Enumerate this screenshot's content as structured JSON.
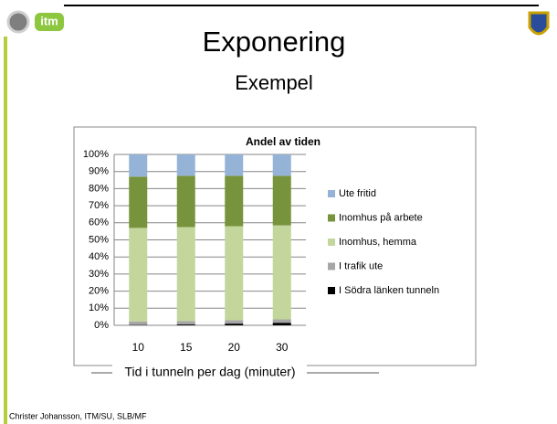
{
  "slide": {
    "title": "Exponering",
    "subtitle": "Exempel",
    "logo_text": "itm",
    "footer": "Christer Johansson, ITM/SU, SLB/MF"
  },
  "chart_data": {
    "type": "stacked_bar",
    "title": "Andel av tiden",
    "x_label": "Tid i tunneln per dag (minuter)",
    "categories": [
      "10",
      "15",
      "20",
      "30"
    ],
    "series": [
      {
        "name": "I Södra länken tunneln",
        "color": "#000000",
        "values": [
          0.2,
          0.5,
          1,
          1.5
        ]
      },
      {
        "name": "I trafik ute",
        "color": "#a6a6a6",
        "values": [
          2,
          2,
          2,
          2
        ]
      },
      {
        "name": "Inomhus, hemma",
        "color": "#c3d69b",
        "values": [
          54.8,
          55,
          55,
          55
        ]
      },
      {
        "name": "Inomhus på arbete",
        "color": "#77933c",
        "values": [
          30,
          30,
          29.5,
          29
        ]
      },
      {
        "name": "Ute fritid",
        "color": "#95b3d7",
        "values": [
          13,
          12.5,
          12.5,
          12.5
        ]
      }
    ],
    "ylim": [
      0,
      100
    ],
    "yticks": [
      {
        "value": 0,
        "label": "0%"
      },
      {
        "value": 10,
        "label": "10%"
      },
      {
        "value": 20,
        "label": "20%"
      },
      {
        "value": 30,
        "label": "30%"
      },
      {
        "value": 40,
        "label": "40%"
      },
      {
        "value": 50,
        "label": "50%"
      },
      {
        "value": 60,
        "label": "60%"
      },
      {
        "value": 70,
        "label": "70%"
      },
      {
        "value": 80,
        "label": "80%"
      },
      {
        "value": 90,
        "label": "90%"
      },
      {
        "value": 100,
        "label": "100%"
      }
    ],
    "grid": true,
    "legend": "right"
  }
}
